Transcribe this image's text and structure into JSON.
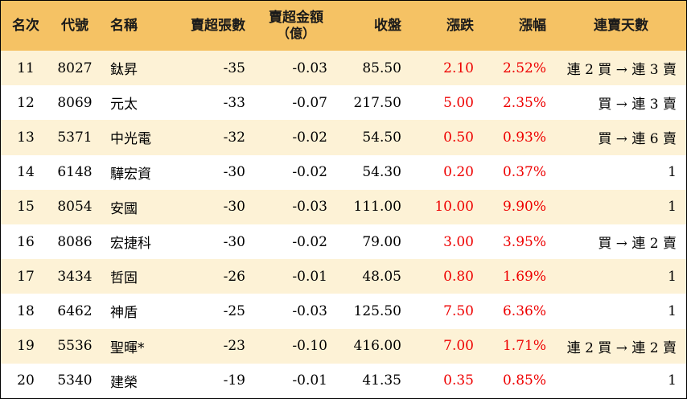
{
  "headers": {
    "rank": "名次",
    "code": "代號",
    "name": "名稱",
    "sell_lots": "賣超張數",
    "sell_amount": "賣超金額",
    "sell_amount_unit": "（億）",
    "close": "收盤",
    "change": "漲跌",
    "change_pct": "漲幅",
    "streak": "連賣天數"
  },
  "rows": [
    {
      "rank": "11",
      "code": "8027",
      "name": "鈦昇",
      "sell_lots": "-35",
      "sell_amount": "-0.03",
      "close": "85.50",
      "change": "2.10",
      "change_pct": "2.52%",
      "streak": "連 2 買 → 連 3 賣"
    },
    {
      "rank": "12",
      "code": "8069",
      "name": "元太",
      "sell_lots": "-33",
      "sell_amount": "-0.07",
      "close": "217.50",
      "change": "5.00",
      "change_pct": "2.35%",
      "streak": "買 → 連 3 賣"
    },
    {
      "rank": "13",
      "code": "5371",
      "name": "中光電",
      "sell_lots": "-32",
      "sell_amount": "-0.02",
      "close": "54.50",
      "change": "0.50",
      "change_pct": "0.93%",
      "streak": "買 → 連 6 賣"
    },
    {
      "rank": "14",
      "code": "6148",
      "name": "驊宏資",
      "sell_lots": "-30",
      "sell_amount": "-0.02",
      "close": "54.30",
      "change": "0.20",
      "change_pct": "0.37%",
      "streak": "1"
    },
    {
      "rank": "15",
      "code": "8054",
      "name": "安國",
      "sell_lots": "-30",
      "sell_amount": "-0.03",
      "close": "111.00",
      "change": "10.00",
      "change_pct": "9.90%",
      "streak": "1"
    },
    {
      "rank": "16",
      "code": "8086",
      "name": "宏捷科",
      "sell_lots": "-30",
      "sell_amount": "-0.02",
      "close": "79.00",
      "change": "3.00",
      "change_pct": "3.95%",
      "streak": "買 → 連 2 賣"
    },
    {
      "rank": "17",
      "code": "3434",
      "name": "哲固",
      "sell_lots": "-26",
      "sell_amount": "-0.01",
      "close": "48.05",
      "change": "0.80",
      "change_pct": "1.69%",
      "streak": "1"
    },
    {
      "rank": "18",
      "code": "6462",
      "name": "神盾",
      "sell_lots": "-25",
      "sell_amount": "-0.03",
      "close": "125.50",
      "change": "7.50",
      "change_pct": "6.36%",
      "streak": "1"
    },
    {
      "rank": "19",
      "code": "5536",
      "name": "聖暉*",
      "sell_lots": "-23",
      "sell_amount": "-0.10",
      "close": "416.00",
      "change": "7.00",
      "change_pct": "1.71%",
      "streak": "連 2 買 → 連 2 賣"
    },
    {
      "rank": "20",
      "code": "5340",
      "name": "建榮",
      "sell_lots": "-19",
      "sell_amount": "-0.01",
      "close": "41.35",
      "change": "0.35",
      "change_pct": "0.85%",
      "streak": "1"
    }
  ],
  "colors": {
    "header_bg": "#f5c264",
    "odd_row_bg": "#fdf2d6",
    "even_row_bg": "#ffffff",
    "positive_change": "#ee0000"
  }
}
